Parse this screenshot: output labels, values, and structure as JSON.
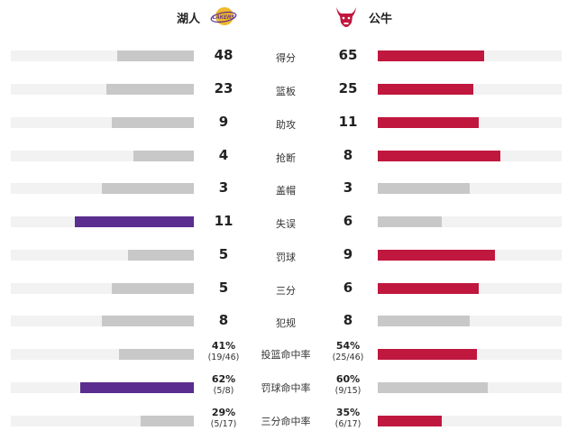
{
  "teams": {
    "home": {
      "name": "湖人",
      "logo_text": "LAKERS"
    },
    "away": {
      "name": "公牛"
    }
  },
  "colors": {
    "home": "#5a2d8e",
    "away": "#c0173f",
    "neutral": "#c8c8c8",
    "track": "#f2f2f2"
  },
  "stats": [
    {
      "label": "得分",
      "home": "48",
      "away": "65",
      "home_ratio": 0.42,
      "away_ratio": 0.58,
      "winner": "away"
    },
    {
      "label": "篮板",
      "home": "23",
      "away": "25",
      "home_ratio": 0.48,
      "away_ratio": 0.52,
      "winner": "away"
    },
    {
      "label": "助攻",
      "home": "9",
      "away": "11",
      "home_ratio": 0.45,
      "away_ratio": 0.55,
      "winner": "away"
    },
    {
      "label": "抢断",
      "home": "4",
      "away": "8",
      "home_ratio": 0.33,
      "away_ratio": 0.67,
      "winner": "away"
    },
    {
      "label": "盖帽",
      "home": "3",
      "away": "3",
      "home_ratio": 0.5,
      "away_ratio": 0.5,
      "winner": "none"
    },
    {
      "label": "失误",
      "home": "11",
      "away": "6",
      "home_ratio": 0.65,
      "away_ratio": 0.35,
      "winner": "home"
    },
    {
      "label": "罚球",
      "home": "5",
      "away": "9",
      "home_ratio": 0.36,
      "away_ratio": 0.64,
      "winner": "away"
    },
    {
      "label": "三分",
      "home": "5",
      "away": "6",
      "home_ratio": 0.45,
      "away_ratio": 0.55,
      "winner": "away"
    },
    {
      "label": "犯规",
      "home": "8",
      "away": "8",
      "home_ratio": 0.5,
      "away_ratio": 0.5,
      "winner": "none"
    },
    {
      "label": "投篮命中率",
      "home": "41%",
      "home_sub": "(19/46)",
      "away": "54%",
      "away_sub": "(25/46)",
      "home_ratio": 0.41,
      "away_ratio": 0.54,
      "winner": "away"
    },
    {
      "label": "罚球命中率",
      "home": "62%",
      "home_sub": "(5/8)",
      "away": "60%",
      "away_sub": "(9/15)",
      "home_ratio": 0.62,
      "away_ratio": 0.6,
      "winner": "home"
    },
    {
      "label": "三分命中率",
      "home": "29%",
      "home_sub": "(5/17)",
      "away": "35%",
      "away_sub": "(6/17)",
      "home_ratio": 0.29,
      "away_ratio": 0.35,
      "winner": "away"
    }
  ]
}
